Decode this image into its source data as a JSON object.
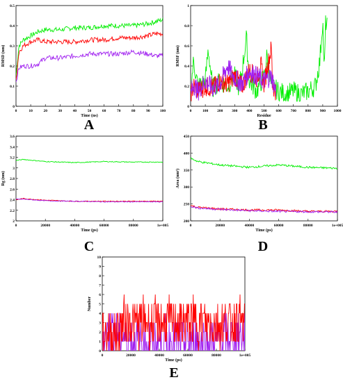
{
  "chart_data": [
    {
      "panel": "A",
      "type": "line",
      "xlabel": "Time (ns)",
      "ylabel": "RMSD (nm)",
      "xlim": [
        0,
        100
      ],
      "ylim": [
        0,
        0.5
      ],
      "xticks": [
        "0",
        "10",
        "20",
        "30",
        "40",
        "50",
        "60",
        "70",
        "80",
        "90",
        "100"
      ],
      "yticks": [
        "0",
        "0.1",
        "0.2",
        "0.3",
        "0.4",
        "0.5"
      ],
      "grid": false,
      "series": [
        {
          "color": "#00ee00",
          "x": [
            0,
            2,
            5,
            10,
            15,
            20,
            30,
            40,
            50,
            60,
            70,
            80,
            90,
            95,
            100
          ],
          "values": [
            0.15,
            0.3,
            0.33,
            0.35,
            0.37,
            0.38,
            0.38,
            0.39,
            0.39,
            0.4,
            0.4,
            0.4,
            0.41,
            0.42,
            0.43
          ]
        },
        {
          "color": "#ff0000",
          "x": [
            0,
            2,
            5,
            10,
            15,
            20,
            30,
            40,
            50,
            60,
            70,
            80,
            90,
            95,
            100
          ],
          "values": [
            0.13,
            0.27,
            0.3,
            0.32,
            0.33,
            0.32,
            0.32,
            0.32,
            0.33,
            0.33,
            0.34,
            0.34,
            0.35,
            0.36,
            0.36
          ]
        },
        {
          "color": "#a020f0",
          "x": [
            0,
            2,
            5,
            10,
            15,
            20,
            30,
            40,
            50,
            60,
            70,
            80,
            90,
            95,
            100
          ],
          "values": [
            0.12,
            0.19,
            0.2,
            0.2,
            0.21,
            0.24,
            0.24,
            0.25,
            0.26,
            0.26,
            0.26,
            0.27,
            0.26,
            0.25,
            0.25
          ]
        }
      ]
    },
    {
      "panel": "B",
      "type": "line",
      "xlabel": "Residue",
      "ylabel": "RMSF (nm)",
      "xlim": [
        0,
        1000
      ],
      "ylim": [
        0,
        1
      ],
      "xticks": [
        "0",
        "100",
        "200",
        "300",
        "400",
        "500",
        "600",
        "700",
        "800",
        "900",
        "1000"
      ],
      "yticks": [
        "0",
        "0.2",
        "0.4",
        "0.6",
        "0.8",
        "1"
      ],
      "grid": false,
      "series": [
        {
          "color": "#00ee00",
          "x": [
            0,
            20,
            50,
            100,
            120,
            150,
            200,
            250,
            300,
            330,
            350,
            380,
            400,
            450,
            500,
            520,
            550,
            600,
            650,
            700,
            750,
            800,
            850,
            880,
            900,
            910,
            920,
            930
          ],
          "values": [
            0.15,
            0.45,
            0.2,
            0.25,
            0.57,
            0.18,
            0.25,
            0.2,
            0.3,
            0.18,
            0.35,
            0.68,
            0.25,
            0.15,
            0.3,
            0.5,
            0.2,
            0.15,
            0.12,
            0.15,
            0.12,
            0.15,
            0.2,
            0.45,
            0.87,
            0.3,
            0.85,
            0.8
          ]
        },
        {
          "color": "#ff0000",
          "x": [
            0,
            20,
            50,
            100,
            150,
            200,
            250,
            300,
            350,
            400,
            450,
            480,
            500,
            550,
            560,
            580
          ],
          "values": [
            0.12,
            0.2,
            0.15,
            0.2,
            0.18,
            0.25,
            0.22,
            0.3,
            0.2,
            0.35,
            0.28,
            0.4,
            0.22,
            0.58,
            0.2,
            0.15
          ]
        },
        {
          "color": "#a020f0",
          "x": [
            0,
            20,
            50,
            100,
            150,
            200,
            250,
            300,
            350,
            400,
            450,
            500,
            550,
            580
          ],
          "values": [
            0.12,
            0.22,
            0.15,
            0.25,
            0.18,
            0.22,
            0.4,
            0.28,
            0.22,
            0.35,
            0.3,
            0.25,
            0.3,
            0.15
          ]
        }
      ]
    },
    {
      "panel": "C",
      "type": "line",
      "xlabel": "Time (ps)",
      "ylabel": "Rg (nm)",
      "xlim": [
        0,
        100000
      ],
      "ylim": [
        2,
        3.6
      ],
      "xticks": [
        "0",
        "20000",
        "40000",
        "60000",
        "80000",
        "1e+005"
      ],
      "yticks": [
        "2",
        "2.2",
        "2.4",
        "2.6",
        "2.8",
        "3",
        "3.2",
        "3.4",
        "3.6"
      ],
      "grid": false,
      "series": [
        {
          "color": "#00ee00",
          "x": [
            0,
            5000,
            20000,
            40000,
            60000,
            80000,
            100000
          ],
          "values": [
            3.14,
            3.16,
            3.12,
            3.1,
            3.12,
            3.11,
            3.11
          ]
        },
        {
          "color": "#ff0000",
          "x": [
            0,
            5000,
            20000,
            40000,
            60000,
            80000,
            100000
          ],
          "values": [
            2.4,
            2.42,
            2.39,
            2.37,
            2.37,
            2.37,
            2.37
          ]
        },
        {
          "color": "#a020f0",
          "x": [
            0,
            5000,
            20000,
            40000,
            60000,
            80000,
            100000
          ],
          "values": [
            2.41,
            2.41,
            2.38,
            2.37,
            2.36,
            2.36,
            2.36
          ]
        }
      ]
    },
    {
      "panel": "D",
      "type": "line",
      "xlabel": "Time (ps)",
      "ylabel": "Area (nm²)",
      "xlim": [
        0,
        100000
      ],
      "ylim": [
        200,
        450
      ],
      "xticks": [
        "0",
        "20000",
        "40000",
        "60000",
        "80000",
        "1e+005"
      ],
      "yticks": [
        "200",
        "250",
        "300",
        "350",
        "400",
        "450"
      ],
      "grid": false,
      "series": [
        {
          "color": "#00ee00",
          "x": [
            0,
            5000,
            20000,
            40000,
            60000,
            80000,
            100000
          ],
          "values": [
            385,
            375,
            365,
            358,
            365,
            358,
            355
          ]
        },
        {
          "color": "#ff0000",
          "x": [
            0,
            5000,
            20000,
            40000,
            60000,
            80000,
            100000
          ],
          "values": [
            245,
            240,
            235,
            232,
            232,
            228,
            228
          ]
        },
        {
          "color": "#a020f0",
          "x": [
            0,
            5000,
            20000,
            40000,
            60000,
            80000,
            100000
          ],
          "values": [
            243,
            238,
            234,
            230,
            228,
            227,
            226
          ]
        }
      ]
    },
    {
      "panel": "E",
      "type": "line",
      "xlabel": "Time (ps)",
      "ylabel": "Number",
      "xlim": [
        0,
        100000
      ],
      "ylim": [
        0,
        10
      ],
      "xticks": [
        "0",
        "20000",
        "40000",
        "60000",
        "80000",
        "1e+005"
      ],
      "yticks": [
        "0",
        "1",
        "2",
        "3",
        "4",
        "5",
        "6",
        "7",
        "8",
        "9",
        "10"
      ],
      "grid": false,
      "series": [
        {
          "color": "#a020f0",
          "x": [
            0,
            10000,
            20000,
            40000,
            60000,
            80000,
            100000
          ],
          "values": [
            2,
            2,
            1,
            1,
            1,
            1,
            2
          ]
        },
        {
          "color": "#ff0000",
          "x": [
            0,
            10000,
            15000,
            20000,
            40000,
            60000,
            80000,
            100000
          ],
          "values": [
            2,
            2,
            3,
            3,
            3,
            3,
            3,
            3
          ]
        }
      ]
    }
  ],
  "panel_letters": [
    "A",
    "B",
    "C",
    "D",
    "E"
  ]
}
